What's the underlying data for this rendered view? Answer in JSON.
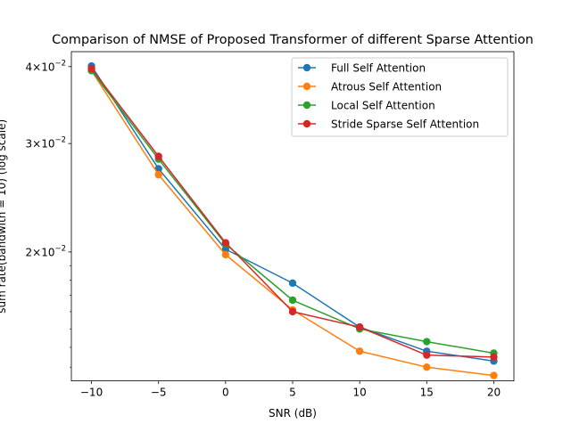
{
  "chart_data": {
    "type": "line",
    "title": "Comparison of NMSE of Proposed Transformer of different Sparse Attention",
    "xlabel": "SNR (dB)",
    "ylabel": "sum rate(bandwith = 10) (log scale)",
    "x": [
      -10,
      -5,
      0,
      5,
      10,
      15,
      20
    ],
    "xticks": [
      "−10",
      "−5",
      "0",
      "5",
      "10",
      "15",
      "20"
    ],
    "xlim": [
      -11.5,
      21.5
    ],
    "yscale": "log",
    "ylim": [
      0.01235,
      0.0423
    ],
    "yticks": [
      {
        "value": 0.02,
        "base": "2",
        "exp": "−2"
      },
      {
        "value": 0.03,
        "base": "3",
        "exp": "−2"
      },
      {
        "value": 0.04,
        "base": "4",
        "exp": "−2"
      }
    ],
    "ytick_prefix": "×10",
    "legend_position": "upper right",
    "grid": false,
    "series": [
      {
        "name": "Full Self Attention",
        "color": "#1f77b4",
        "values": [
          0.0401,
          0.0273,
          0.0202,
          0.0178,
          0.0151,
          0.0138,
          0.0133
        ]
      },
      {
        "name": "Atrous Self Attention",
        "color": "#ff7f0e",
        "values": [
          0.0394,
          0.0267,
          0.0198,
          0.0161,
          0.0138,
          0.013,
          0.0126
        ]
      },
      {
        "name": "Local Self Attention",
        "color": "#2ca02c",
        "values": [
          0.0394,
          0.0283,
          0.0206,
          0.0167,
          0.015,
          0.0143,
          0.0137
        ]
      },
      {
        "name": "Stride Sparse Self Attention",
        "color": "#d62728",
        "values": [
          0.0397,
          0.0286,
          0.0207,
          0.016,
          0.0151,
          0.0136,
          0.0135
        ]
      }
    ]
  }
}
